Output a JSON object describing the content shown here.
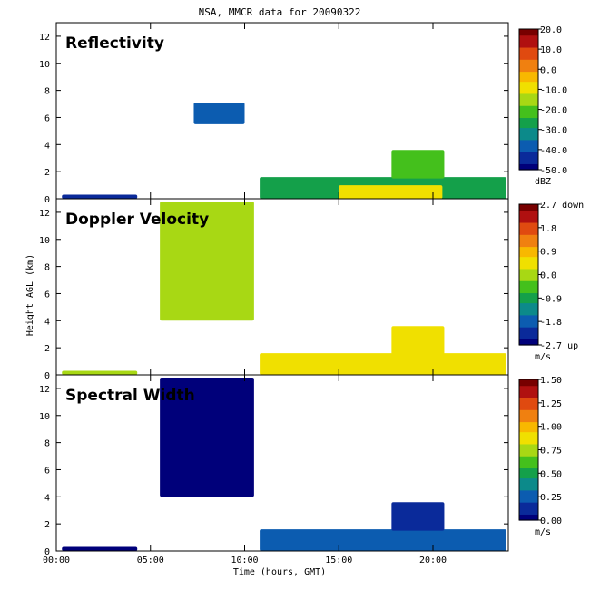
{
  "title": "NSA, MMCR data for 20090322",
  "xlabel": "Time (hours, GMT)",
  "ylabel": "Height AGL (km)",
  "x_ticks": [
    "00:00",
    "05:00",
    "10:00",
    "15:00",
    "20:00"
  ],
  "y_ticks": [
    "0",
    "2",
    "4",
    "6",
    "8",
    "10",
    "12"
  ],
  "panels": [
    {
      "label": "Reflectivity",
      "colorbar_unit": "dBZ",
      "colorbar_ticks": [
        "20.0",
        "10.0",
        "0.0",
        "-10.0",
        "-20.0",
        "-30.0",
        "-40.0",
        "-50.0"
      ]
    },
    {
      "label": "Doppler Velocity",
      "colorbar_unit": "m/s",
      "colorbar_ticks": [
        "2.7 down",
        "1.8",
        "0.9",
        "0.0",
        "-0.9",
        "-1.8",
        "-2.7 up"
      ]
    },
    {
      "label": "Spectral Width",
      "colorbar_unit": "m/s",
      "colorbar_ticks": [
        "1.50",
        "1.25",
        "1.00",
        "0.75",
        "0.50",
        "0.25",
        "0.00"
      ]
    }
  ],
  "colors": {
    "colormap": [
      "#00007a",
      "#0a2a9a",
      "#0c5cb0",
      "#0c8a8a",
      "#14a04a",
      "#44c01c",
      "#a8d814",
      "#f0e000",
      "#f8b800",
      "#f08010",
      "#e04a10",
      "#b01010",
      "#780000"
    ]
  },
  "chart_data": {
    "type": "heatmap",
    "x_unit": "hours GMT",
    "y_unit": "km",
    "xlim": [
      0,
      24
    ],
    "ylim": [
      0,
      13
    ],
    "panels": [
      {
        "name": "Reflectivity",
        "unit": "dBZ",
        "clim": [
          -50,
          20
        ],
        "features": [
          {
            "x": [
              0.3,
              4.3
            ],
            "y": [
              0.0,
              0.3
            ],
            "value": -45
          },
          {
            "x": [
              7.3,
              10.0
            ],
            "y": [
              5.5,
              7.1
            ],
            "value": -40
          },
          {
            "x": [
              10.8,
              23.9
            ],
            "y": [
              0.0,
              1.6
            ],
            "value": -28
          },
          {
            "x": [
              15.0,
              20.5
            ],
            "y": [
              0.0,
              1.0
            ],
            "value": -8
          },
          {
            "x": [
              17.8,
              20.6
            ],
            "y": [
              1.5,
              3.6
            ],
            "value": -22
          }
        ]
      },
      {
        "name": "Doppler Velocity",
        "unit": "m/s",
        "clim": [
          -2.7,
          2.7
        ],
        "features": [
          {
            "x": [
              0.3,
              4.3
            ],
            "y": [
              0.0,
              0.3
            ],
            "value": 0.2
          },
          {
            "x": [
              7.3,
              10.0
            ],
            "y": [
              5.5,
              7.1
            ],
            "value": 0.2
          },
          {
            "x": [
              5.5,
              10.5
            ],
            "y": [
              4.0,
              12.8
            ],
            "value": 0.0
          },
          {
            "x": [
              10.8,
              23.9
            ],
            "y": [
              0.0,
              1.6
            ],
            "value": 0.3
          },
          {
            "x": [
              17.8,
              20.6
            ],
            "y": [
              1.5,
              3.6
            ],
            "value": 0.6
          }
        ]
      },
      {
        "name": "Spectral Width",
        "unit": "m/s",
        "clim": [
          0,
          1.5
        ],
        "features": [
          {
            "x": [
              0.3,
              4.3
            ],
            "y": [
              0.0,
              0.3
            ],
            "value": 0.05
          },
          {
            "x": [
              7.3,
              10.0
            ],
            "y": [
              5.5,
              7.1
            ],
            "value": 0.05
          },
          {
            "x": [
              5.5,
              10.5
            ],
            "y": [
              4.0,
              12.8
            ],
            "value": 0.02
          },
          {
            "x": [
              10.8,
              23.9
            ],
            "y": [
              0.0,
              1.6
            ],
            "value": 0.2
          },
          {
            "x": [
              17.8,
              20.6
            ],
            "y": [
              1.5,
              3.6
            ],
            "value": 0.12
          }
        ]
      }
    ]
  }
}
